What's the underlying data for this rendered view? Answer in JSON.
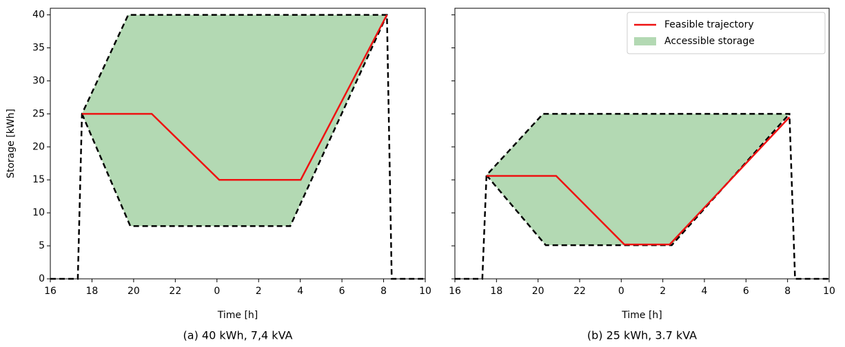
{
  "chart_data": [
    {
      "type": "line",
      "caption": "(a) 40 kWh, 7,4 kVA",
      "xlabel": "Time [h]",
      "ylabel": "Storage [kWh]",
      "xlim": [
        16,
        34
      ],
      "ylim": [
        0,
        41
      ],
      "xticks": [
        16,
        18,
        20,
        22,
        {
          "value": 24,
          "label": "0"
        },
        {
          "value": 26,
          "label": "2"
        },
        {
          "value": 28,
          "label": "4"
        },
        {
          "value": 30,
          "label": "6"
        },
        {
          "value": 32,
          "label": "8"
        },
        {
          "value": 34,
          "label": "10"
        }
      ],
      "yticks": [
        0,
        5,
        10,
        15,
        20,
        25,
        30,
        35,
        40
      ],
      "show_ytick_labels": true,
      "band": {
        "color": "#b3d9b3",
        "edge_color": "#000000",
        "upper": {
          "x": [
            16,
            17.32,
            17.52,
            19.74,
            32.16,
            32.39,
            34
          ],
          "values": [
            0,
            0,
            25,
            40,
            40,
            0,
            0
          ]
        },
        "lower": {
          "x": [
            17.52,
            19.84,
            27.52,
            32.16
          ],
          "values": [
            25,
            8,
            8,
            40
          ]
        }
      },
      "series": [
        {
          "color": "#ee1111",
          "x": [
            17.52,
            20.87,
            24.11,
            28.02,
            32.16
          ],
          "values": [
            25,
            25,
            15,
            15,
            40
          ]
        }
      ]
    },
    {
      "type": "line",
      "caption": "(b) 25 kWh, 3.7 kVA",
      "xlabel": "Time [h]",
      "xlim": [
        16,
        34
      ],
      "ylim": [
        0,
        41
      ],
      "xticks": [
        16,
        18,
        20,
        22,
        {
          "value": 24,
          "label": "0"
        },
        {
          "value": 26,
          "label": "2"
        },
        {
          "value": 28,
          "label": "4"
        },
        {
          "value": 30,
          "label": "6"
        },
        {
          "value": 32,
          "label": "8"
        },
        {
          "value": 34,
          "label": "10"
        }
      ],
      "yticks": [
        0,
        5,
        10,
        15,
        20,
        25,
        30,
        35,
        40
      ],
      "show_ytick_labels": false,
      "legend": "upper right",
      "band": {
        "name": "Accessible storage",
        "color": "#b3d9b3",
        "edge_color": "#000000",
        "upper": {
          "x": [
            16,
            17.32,
            17.52,
            20.24,
            32.09,
            32.36,
            34
          ],
          "values": [
            0,
            0,
            15.7,
            25,
            25,
            0,
            0
          ]
        },
        "lower": {
          "x": [
            17.52,
            20.37,
            26.43,
            32.09
          ],
          "values": [
            15.7,
            5.1,
            5.1,
            25
          ]
        }
      },
      "series": [
        {
          "name": "Feasible trajectory",
          "color": "#ee1111",
          "x": [
            17.52,
            20.87,
            24.15,
            26.33,
            32.09
          ],
          "values": [
            15.6,
            15.6,
            5.2,
            5.2,
            24.5
          ]
        }
      ]
    }
  ]
}
